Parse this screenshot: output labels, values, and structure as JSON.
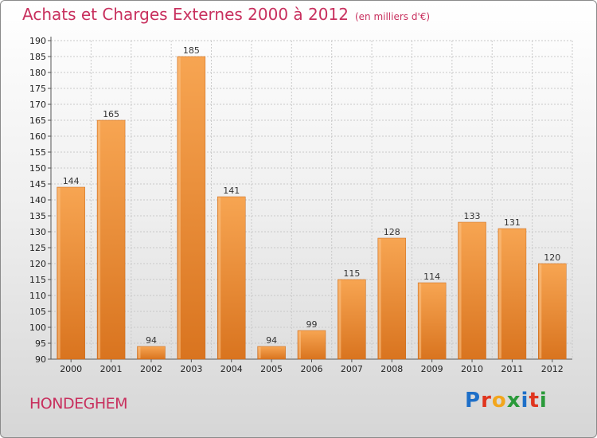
{
  "title": "Achats et Charges Externes 2000 à 2012",
  "subtitle": "(en milliers d'€)",
  "commune": "HONDEGHEM",
  "logo": {
    "text": "Proxiti",
    "letters": [
      {
        "char": "P",
        "color": "#1e6fc8"
      },
      {
        "char": "r",
        "color": "#e0351e"
      },
      {
        "char": "o",
        "color": "#f2a61d"
      },
      {
        "char": "x",
        "color": "#2a9a3a"
      },
      {
        "char": "i",
        "color": "#1e6fc8"
      },
      {
        "char": "t",
        "color": "#e0351e"
      },
      {
        "char": "i",
        "color": "#2a9a3a"
      }
    ]
  },
  "colors": {
    "title": "#c8305e",
    "bar_light": "#f7a552",
    "bar_dark": "#d9741f"
  },
  "chart_data": {
    "type": "bar",
    "categories": [
      "2000",
      "2001",
      "2002",
      "2003",
      "2004",
      "2005",
      "2006",
      "2007",
      "2008",
      "2009",
      "2010",
      "2011",
      "2012"
    ],
    "values": [
      144,
      165,
      94,
      185,
      141,
      94,
      99,
      115,
      128,
      114,
      133,
      131,
      120
    ],
    "ylim": [
      90,
      190
    ],
    "ytick_step": 5,
    "grid": true,
    "xlabel": "",
    "ylabel": ""
  }
}
